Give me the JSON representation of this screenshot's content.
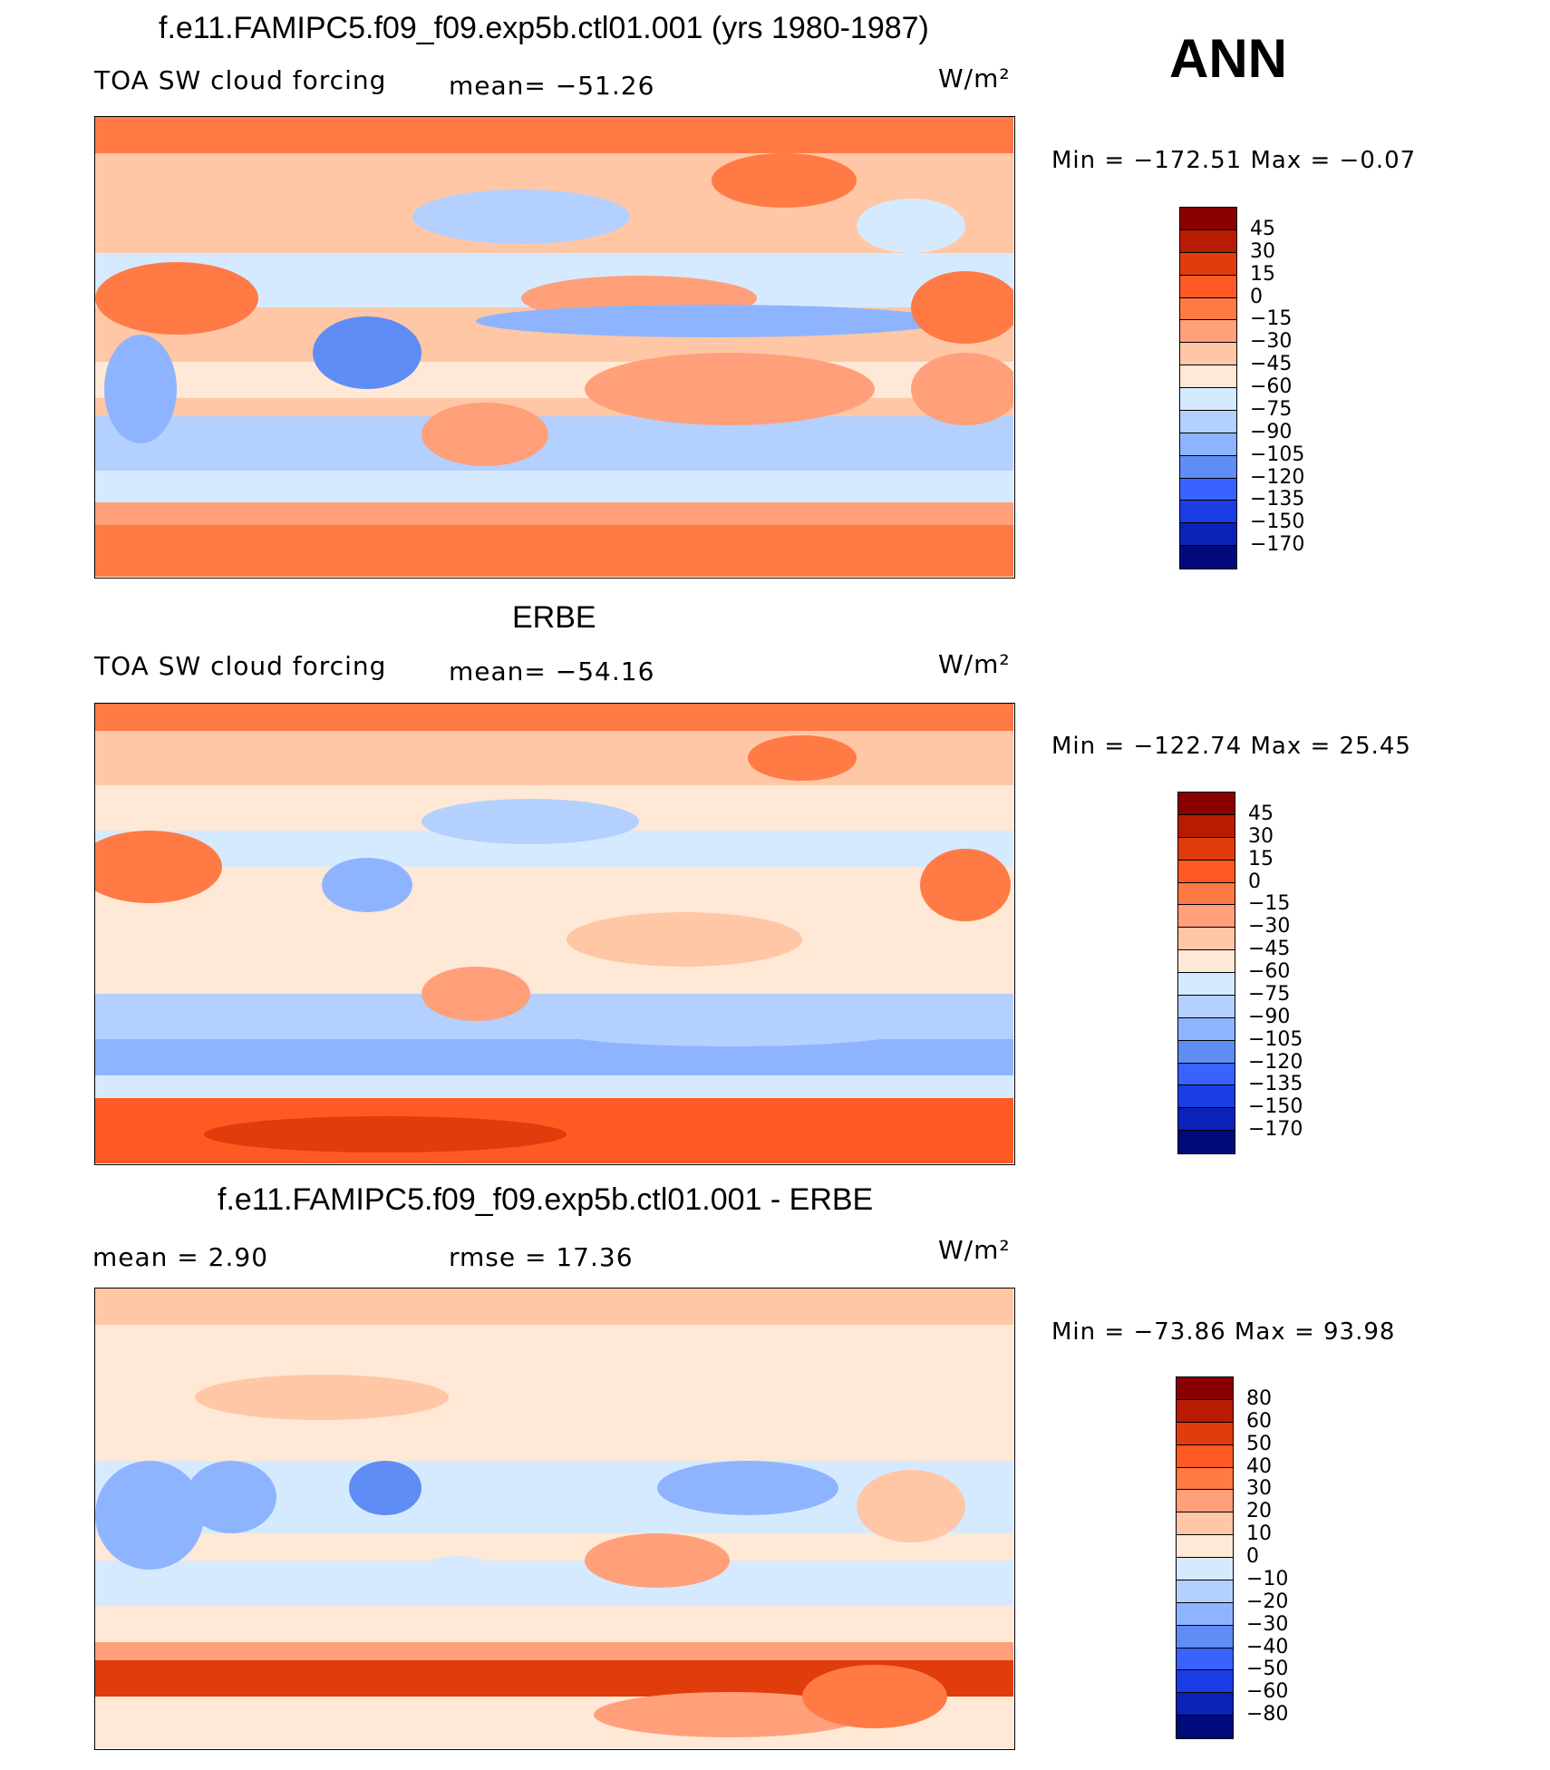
{
  "figure": {
    "season_label": "ANN",
    "units": "W/m²"
  },
  "panels": [
    {
      "title": "f.e11.FAMIPC5.f09_f09.exp5b.ctl01.001 (yrs 1980-1987)",
      "variable": "TOA SW cloud forcing",
      "stat1": "mean=  −51.26",
      "stat2": "",
      "minmax": "Min  =  −172.51  Max  =    −0.07",
      "colorbar": {
        "ticks": [
          "45",
          "30",
          "15",
          "0",
          "−15",
          "−30",
          "−45",
          "−60",
          "−75",
          "−90",
          "−105",
          "−120",
          "−135",
          "−150",
          "−170"
        ],
        "colors": [
          "#8a0000",
          "#b81c00",
          "#e03c0c",
          "#ff5a24",
          "#ff7a45",
          "#ffa07a",
          "#ffc7a6",
          "#ffe8d6",
          "#d6eaff",
          "#b4d0ff",
          "#8fb4ff",
          "#5f8cf5",
          "#3a62ff",
          "#1b3de6",
          "#0b22b8",
          "#000a7a"
        ],
        "colorbar_kind": "diverging red-blue"
      }
    },
    {
      "title": "ERBE",
      "variable": "TOA SW cloud forcing",
      "stat1": "mean=  −54.16",
      "stat2": "",
      "minmax": "Min  =  −122.74  Max  =    25.45",
      "colorbar": {
        "ticks": [
          "45",
          "30",
          "15",
          "0",
          "−15",
          "−30",
          "−45",
          "−60",
          "−75",
          "−90",
          "−105",
          "−120",
          "−135",
          "−150",
          "−170"
        ],
        "colors": [
          "#8a0000",
          "#b81c00",
          "#e03c0c",
          "#ff5a24",
          "#ff7a45",
          "#ffa07a",
          "#ffc7a6",
          "#ffe8d6",
          "#d6eaff",
          "#b4d0ff",
          "#8fb4ff",
          "#5f8cf5",
          "#3a62ff",
          "#1b3de6",
          "#0b22b8",
          "#000a7a"
        ],
        "colorbar_kind": "diverging red-blue"
      }
    },
    {
      "title": "f.e11.FAMIPC5.f09_f09.exp5b.ctl01.001 - ERBE",
      "variable": "",
      "stat1": "mean  =     2.90",
      "stat2": "rmse  =    17.36",
      "minmax": "Min  =  −73.86  Max  =    93.98",
      "colorbar": {
        "ticks": [
          "80",
          "60",
          "50",
          "40",
          "30",
          "20",
          "10",
          "0",
          "−10",
          "−20",
          "−30",
          "−40",
          "−50",
          "−60",
          "−80"
        ],
        "colors": [
          "#8a0000",
          "#b81c00",
          "#e03c0c",
          "#ff5a24",
          "#ff7a45",
          "#ffa07a",
          "#ffc7a6",
          "#ffe8d6",
          "#d6eaff",
          "#b4d0ff",
          "#8fb4ff",
          "#5f8cf5",
          "#3a62ff",
          "#1b3de6",
          "#0b22b8",
          "#000a7a"
        ],
        "colorbar_kind": "diverging red-blue"
      }
    }
  ]
}
